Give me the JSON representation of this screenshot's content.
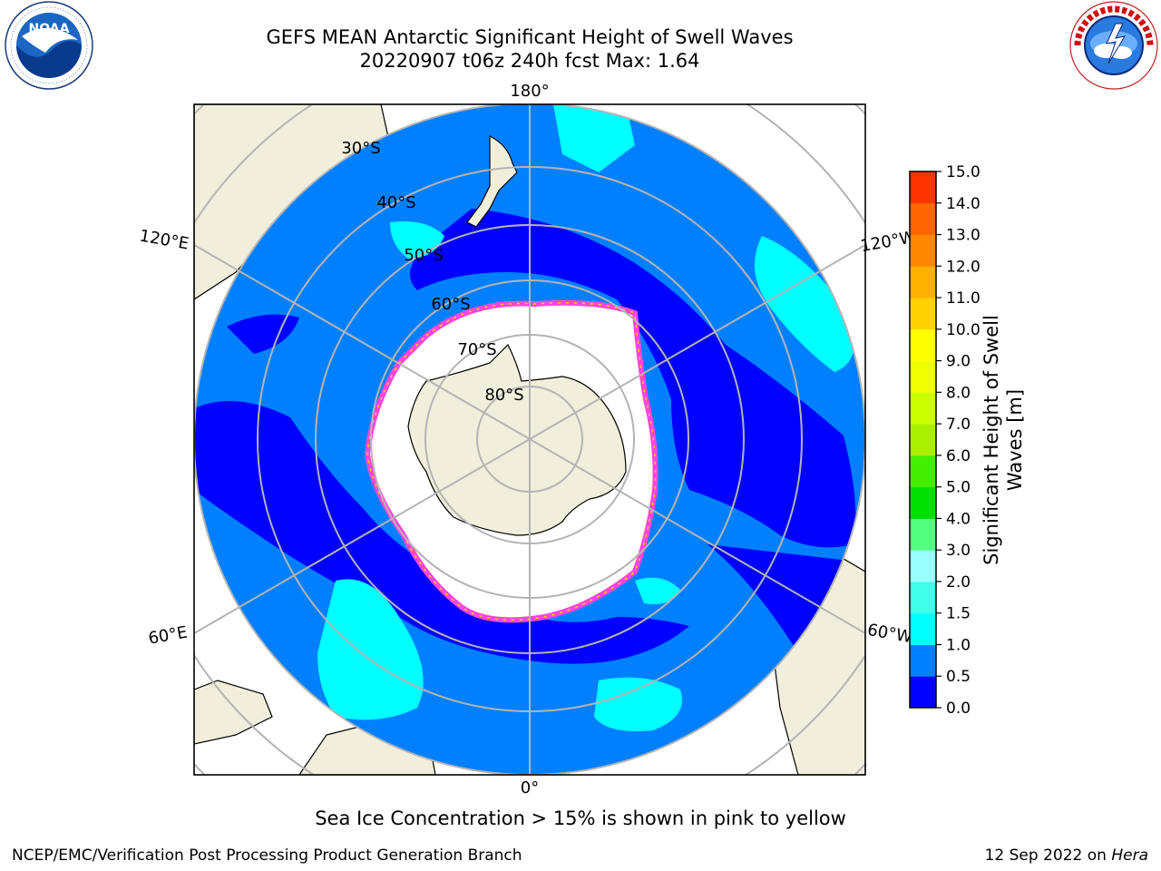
{
  "title": {
    "line1": "GEFS MEAN Antarctic Significant Height of Swell Waves",
    "line2": "20220907 t06z 240h fcst   Max: 1.64"
  },
  "logos": {
    "left": "noaa-logo",
    "right": "nws-logo"
  },
  "map": {
    "projection": "south-polar-stereographic",
    "longitude_labels": {
      "top": "180°",
      "bottom": "0°",
      "upper_left": "120°E",
      "lower_left": "60°E",
      "upper_right": "120°W",
      "lower_right": "60°W"
    },
    "latitude_labels": [
      "30°S",
      "40°S",
      "50°S",
      "60°S",
      "70°S",
      "80°S"
    ],
    "colors": {
      "land": "#efefdc",
      "ocean_0_0_5": "#0000ff",
      "ocean_0_5_1_0": "#0080ff",
      "ocean_1_0_1_5": "#00ffff",
      "sea_ice": "#ffffff",
      "ice_edge": "#ff44dd",
      "grid": "#b4b4b4"
    }
  },
  "colorbar": {
    "label": "Significant Height of Swell Waves [m]",
    "ticks": [
      "0.0",
      "0.5",
      "1.0",
      "1.5",
      "2.0",
      "3.0",
      "4.0",
      "5.0",
      "6.0",
      "7.0",
      "8.0",
      "9.0",
      "10.0",
      "11.0",
      "12.0",
      "13.0",
      "14.0",
      "15.0"
    ],
    "colors": [
      "#0000ff",
      "#0080ff",
      "#00ffff",
      "#40ffe8",
      "#99ffff",
      "#55ff80",
      "#00e000",
      "#44ee00",
      "#aaee00",
      "#ccff00",
      "#eeff00",
      "#ffff00",
      "#ffd200",
      "#ffb000",
      "#ff8800",
      "#ff6600",
      "#ff3300",
      "#ff0000"
    ]
  },
  "note": "Sea Ice Concentration > 15% is shown in pink to yellow",
  "footer": {
    "left": "NCEP/EMC/Verification Post Processing Product Generation Branch",
    "right_date": "12 Sep 2022 on ",
    "right_host": "Hera"
  }
}
